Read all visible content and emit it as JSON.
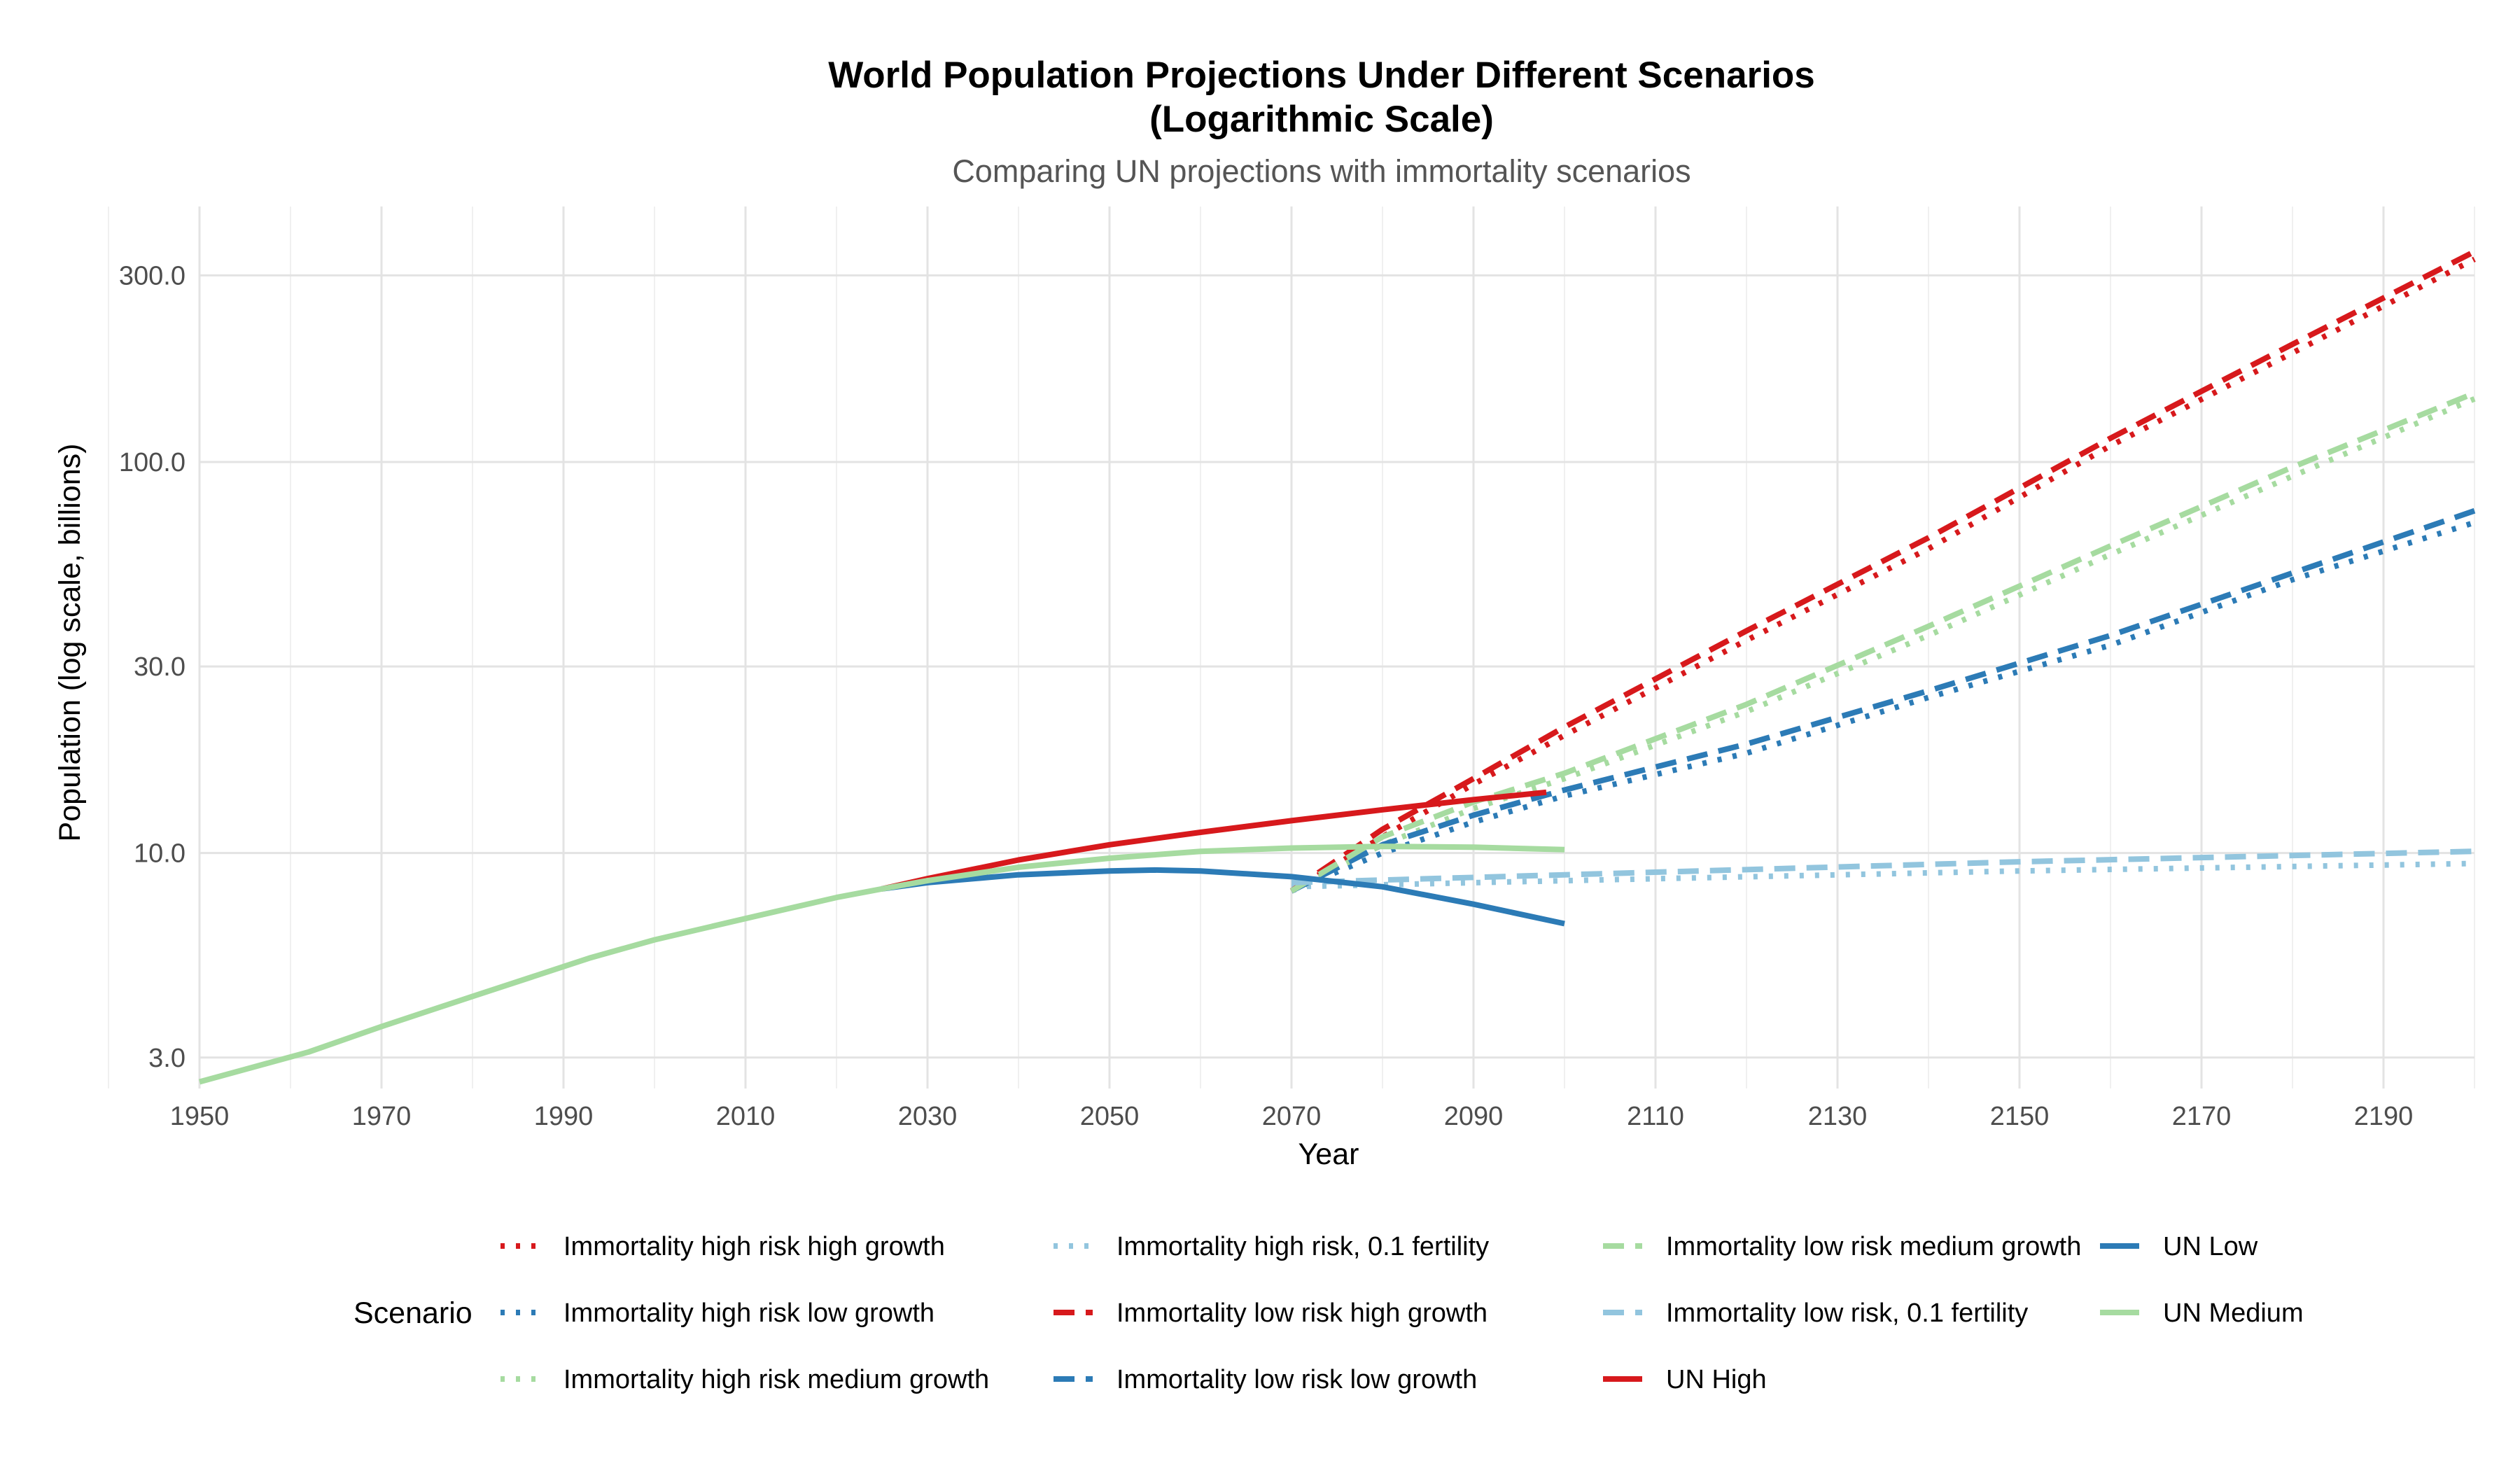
{
  "chart_data": {
    "type": "line",
    "title_line1": "World Population Projections Under Different Scenarios",
    "title_line2": "(Logarithmic Scale)",
    "subtitle": "Comparing UN projections with immortality scenarios",
    "xlabel": "Year",
    "ylabel": "Population (log scale, billions)",
    "y_scale": "log",
    "xlim": [
      1950,
      2200
    ],
    "ylim": [
      2.5,
      450
    ],
    "x_ticks": [
      1950,
      1970,
      1990,
      2010,
      2030,
      2050,
      2070,
      2090,
      2110,
      2130,
      2150,
      2170,
      2190
    ],
    "y_ticks": [
      3,
      10,
      30,
      100,
      300
    ],
    "y_tick_labels": [
      "3.0",
      "10.0",
      "30.0",
      "100.0",
      "300.0"
    ],
    "grid": true,
    "legend_title": "Scenario",
    "legend_position": "bottom",
    "colors": {
      "red": "#d7191c",
      "blue": "#2c7bb6",
      "light_green": "#a6dba0",
      "light_blue": "#92c5de"
    },
    "series": [
      {
        "name": "Immortality high risk high growth",
        "color": "#d7191c",
        "dash": "dotted",
        "x": [
          2070,
          2080,
          2090,
          2100,
          2120,
          2140,
          2160,
          2180,
          2200
        ],
        "y": [
          8.0,
          11.0,
          15.0,
          20.0,
          35.0,
          60.0,
          110.0,
          190.0,
          330.0
        ]
      },
      {
        "name": "Immortality high risk low growth",
        "color": "#2c7bb6",
        "dash": "dotted",
        "x": [
          2070,
          2080,
          2090,
          2100,
          2120,
          2140,
          2160,
          2180,
          2200
        ],
        "y": [
          8.0,
          10.0,
          12.0,
          14.0,
          18.0,
          25.0,
          34.0,
          50.0,
          70.0
        ]
      },
      {
        "name": "Immortality high risk medium growth",
        "color": "#a6dba0",
        "dash": "dotted",
        "x": [
          2070,
          2080,
          2090,
          2100,
          2120,
          2140,
          2160,
          2180,
          2200
        ],
        "y": [
          8.0,
          10.5,
          13.0,
          15.5,
          23.0,
          36.0,
          58.0,
          92.0,
          145.0
        ]
      },
      {
        "name": "Immortality high risk, 0.1 fertility",
        "color": "#92c5de",
        "dash": "dotted",
        "x": [
          2070,
          2100,
          2150,
          2200
        ],
        "y": [
          8.2,
          8.5,
          9.0,
          9.4
        ]
      },
      {
        "name": "Immortality low risk high growth",
        "color": "#d7191c",
        "dash": "dashed",
        "x": [
          2070,
          2080,
          2090,
          2100,
          2120,
          2140,
          2160,
          2180,
          2200
        ],
        "y": [
          8.0,
          11.5,
          15.5,
          21.0,
          37.0,
          64.0,
          115.0,
          200.0,
          345.0
        ]
      },
      {
        "name": "Immortality low risk low growth",
        "color": "#2c7bb6",
        "dash": "dashed",
        "x": [
          2070,
          2080,
          2090,
          2100,
          2120,
          2140,
          2160,
          2180,
          2200
        ],
        "y": [
          8.0,
          10.5,
          12.5,
          14.5,
          19.0,
          26.0,
          36.0,
          52.0,
          75.0
        ]
      },
      {
        "name": "Immortality low risk medium growth",
        "color": "#a6dba0",
        "dash": "dashed",
        "x": [
          2070,
          2080,
          2090,
          2100,
          2120,
          2140,
          2160,
          2180,
          2200
        ],
        "y": [
          8.0,
          11.0,
          13.5,
          16.0,
          24.0,
          38.0,
          61.0,
          97.0,
          150.0
        ]
      },
      {
        "name": "Immortality low risk, 0.1 fertility",
        "color": "#92c5de",
        "dash": "dashed",
        "x": [
          2070,
          2100,
          2150,
          2200
        ],
        "y": [
          8.4,
          8.8,
          9.5,
          10.1
        ]
      },
      {
        "name": "UN High",
        "color": "#d7191c",
        "dash": "solid",
        "x": [
          2025,
          2030,
          2040,
          2050,
          2060,
          2070,
          2080,
          2090,
          2098
        ],
        "y": [
          8.1,
          8.6,
          9.6,
          10.5,
          11.3,
          12.1,
          12.9,
          13.7,
          14.3
        ]
      },
      {
        "name": "UN Low",
        "color": "#2c7bb6",
        "dash": "solid",
        "x": [
          2025,
          2030,
          2040,
          2050,
          2055,
          2060,
          2070,
          2080,
          2090,
          2100
        ],
        "y": [
          8.1,
          8.4,
          8.8,
          9.0,
          9.05,
          9.0,
          8.7,
          8.2,
          7.4,
          6.6
        ]
      },
      {
        "name": "UN Medium",
        "color": "#a6dba0",
        "dash": "solid",
        "x": [
          1950,
          1962,
          1970,
          1980,
          1993,
          2000,
          2010,
          2020,
          2025,
          2030,
          2040,
          2050,
          2060,
          2070,
          2080,
          2090,
          2100
        ],
        "y": [
          2.6,
          3.1,
          3.6,
          4.3,
          5.4,
          6.0,
          6.8,
          7.7,
          8.1,
          8.5,
          9.2,
          9.7,
          10.1,
          10.3,
          10.4,
          10.35,
          10.2
        ]
      }
    ],
    "legend_columns": [
      [
        "Immortality high risk high growth",
        "Immortality high risk low growth",
        "Immortality high risk medium growth"
      ],
      [
        "Immortality high risk, 0.1 fertility",
        "Immortality low risk high growth",
        "Immortality low risk low growth"
      ],
      [
        "Immortality low risk medium growth",
        "Immortality low risk, 0.1 fertility",
        "UN High"
      ],
      [
        "UN Low",
        "UN Medium"
      ]
    ]
  }
}
